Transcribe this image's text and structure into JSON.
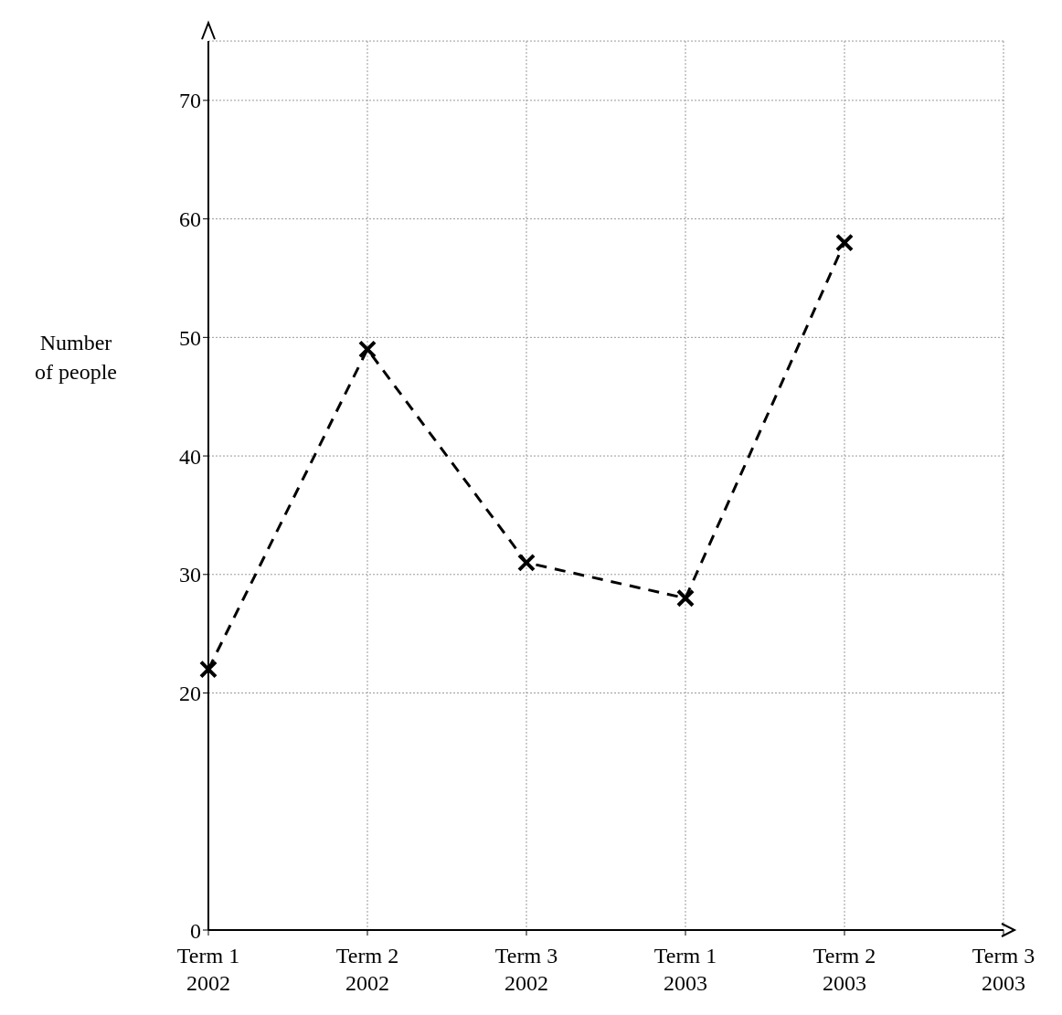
{
  "chart_data": {
    "type": "line",
    "ylabel": "Number\nof people",
    "categories": [
      "Term 1\n2002",
      "Term 2\n2002",
      "Term 3\n2002",
      "Term 1\n2003",
      "Term 2\n2003",
      "Term 3\n2003"
    ],
    "series": [
      {
        "color": "#000000",
        "values": [
          22,
          49,
          31,
          28,
          58,
          null
        ]
      }
    ],
    "ylim": [
      0,
      75
    ],
    "yticks": [
      0,
      20,
      30,
      40,
      50,
      60,
      70
    ],
    "grid": true,
    "marker": "cross",
    "line_style": "dashed"
  }
}
